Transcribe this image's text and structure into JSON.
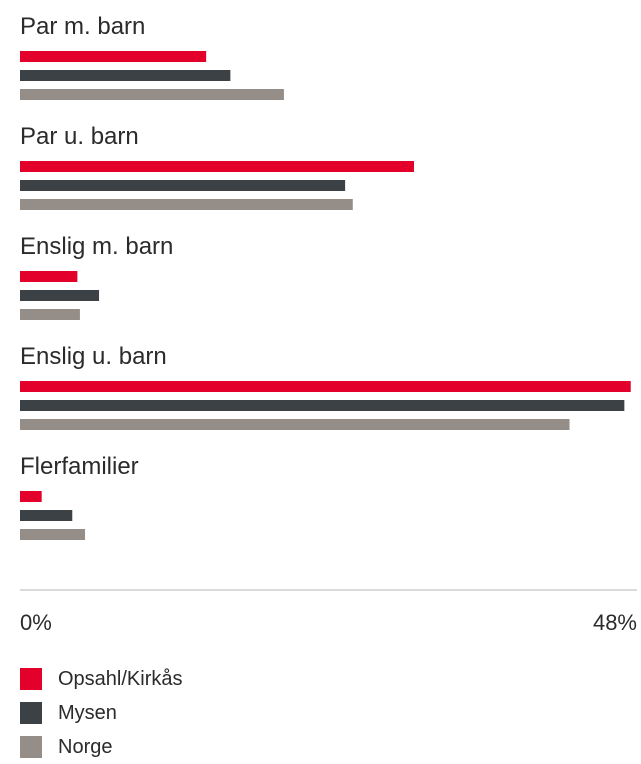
{
  "chart_data": {
    "type": "bar",
    "orientation": "horizontal",
    "categories": [
      "Par m. barn",
      "Par u. barn",
      "Enslig m. barn",
      "Enslig u. barn",
      "Flerfamilier"
    ],
    "series": [
      {
        "name": "Opsahl/Kirkås",
        "color": "#e3002b",
        "values": [
          14.6,
          30.9,
          4.5,
          47.9,
          1.7
        ]
      },
      {
        "name": "Mysen",
        "color": "#3b4144",
        "values": [
          16.5,
          25.5,
          6.2,
          47.4,
          4.1
        ]
      },
      {
        "name": "Norge",
        "color": "#958d88",
        "values": [
          20.7,
          26.1,
          4.7,
          43.1,
          5.1
        ]
      }
    ],
    "xlim": [
      0,
      48
    ],
    "x_tick_labels": [
      "0%",
      "48%"
    ],
    "legend_position": "bottom-left",
    "grid": false
  }
}
